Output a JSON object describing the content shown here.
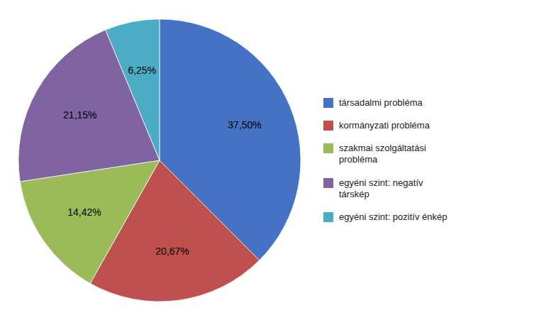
{
  "chart_data": {
    "type": "pie",
    "categories": [
      "társadalmi probléma",
      "kormányzati probléma",
      "szakmai szolgáltatási\nprobléma",
      "egyéni szint: negatív\ntárskép",
      "egyéni szint: pozitív énkép"
    ],
    "values": [
      37.5,
      20.67,
      14.42,
      21.15,
      6.25
    ],
    "value_labels": [
      "37,50%",
      "20,67%",
      "14,42%",
      "21,15%",
      "6,25%"
    ],
    "colors": [
      "#4472C4",
      "#C0504D",
      "#9BBB59",
      "#8064A2",
      "#4BACC6"
    ],
    "data_labels": true,
    "legend": "right"
  }
}
